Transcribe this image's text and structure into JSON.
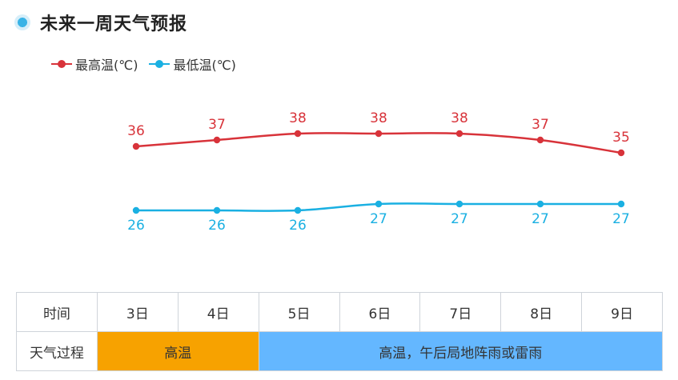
{
  "title": "未来一周天气预报",
  "chart_data": {
    "type": "line",
    "categories": [
      "3日",
      "4日",
      "5日",
      "6日",
      "7日",
      "8日",
      "9日"
    ],
    "series": [
      {
        "name": "最高温(℃)",
        "values": [
          36,
          37,
          38,
          38,
          38,
          37,
          35
        ],
        "color": "#d8333a"
      },
      {
        "name": "最低温(℃)",
        "values": [
          26,
          26,
          26,
          27,
          27,
          27,
          27
        ],
        "color": "#1ab0e2"
      }
    ],
    "legend_position": "top-left",
    "grid": false
  },
  "table": {
    "time_label": "时间",
    "days": [
      "3日",
      "4日",
      "5日",
      "6日",
      "7日",
      "8日",
      "9日"
    ],
    "weather_label": "天气过程",
    "weather_periods": [
      {
        "text": "高温",
        "span": 2,
        "color": "#f7a200"
      },
      {
        "text": "高温，午后局地阵雨或雷雨",
        "span": 5,
        "color": "#64b7ff"
      }
    ]
  }
}
